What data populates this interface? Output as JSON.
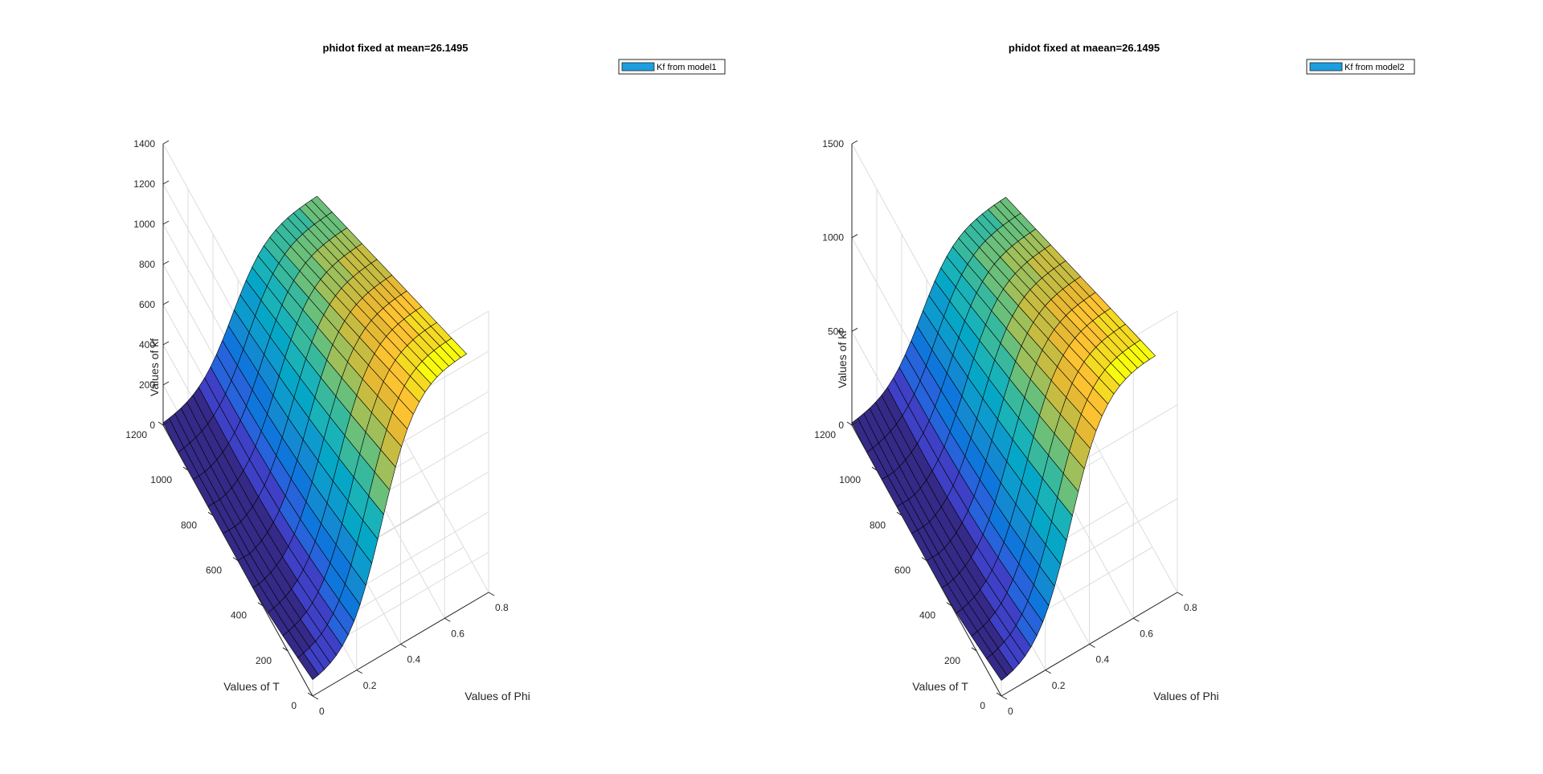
{
  "figure": {
    "background": "#ffffff"
  },
  "chart_data": [
    {
      "type": "surface",
      "title": "phidot fixed at mean=26.1495",
      "xlabel": "Values of Phi",
      "ylabel": "Values of T",
      "zlabel": "Values of kf",
      "xlim": [
        0,
        0.8
      ],
      "ylim": [
        0,
        1200
      ],
      "zlim": [
        0,
        1400
      ],
      "xticks": [
        "0",
        "0.2",
        "0.4",
        "0.6",
        "0.8"
      ],
      "yticks": [
        "0",
        "200",
        "400",
        "600",
        "800",
        "1000",
        "1200"
      ],
      "zticks": [
        "0",
        "200",
        "400",
        "600",
        "800",
        "1000",
        "1200",
        "1400"
      ],
      "legend": {
        "label": "Kf from model1",
        "color": "#1d9ee0",
        "placement": "top-right"
      },
      "colormap": "parula",
      "z_max_estimate": 1260
    },
    {
      "type": "surface",
      "title": "phidot fixed at maean=26.1495",
      "xlabel": "Values of Phi",
      "ylabel": "Values of T",
      "zlabel": "Values of kf",
      "xlim": [
        0,
        0.8
      ],
      "ylim": [
        0,
        1200
      ],
      "zlim": [
        0,
        1500
      ],
      "xticks": [
        "0",
        "0.2",
        "0.4",
        "0.6",
        "0.8"
      ],
      "yticks": [
        "0",
        "200",
        "400",
        "600",
        "800",
        "1000",
        "1200"
      ],
      "zticks": [
        "0",
        "500",
        "1000",
        "1500"
      ],
      "legend": {
        "label": "Kf from model2",
        "color": "#1d9ee0",
        "placement": "top-right"
      },
      "colormap": "parula",
      "z_max_estimate": 1340
    }
  ]
}
